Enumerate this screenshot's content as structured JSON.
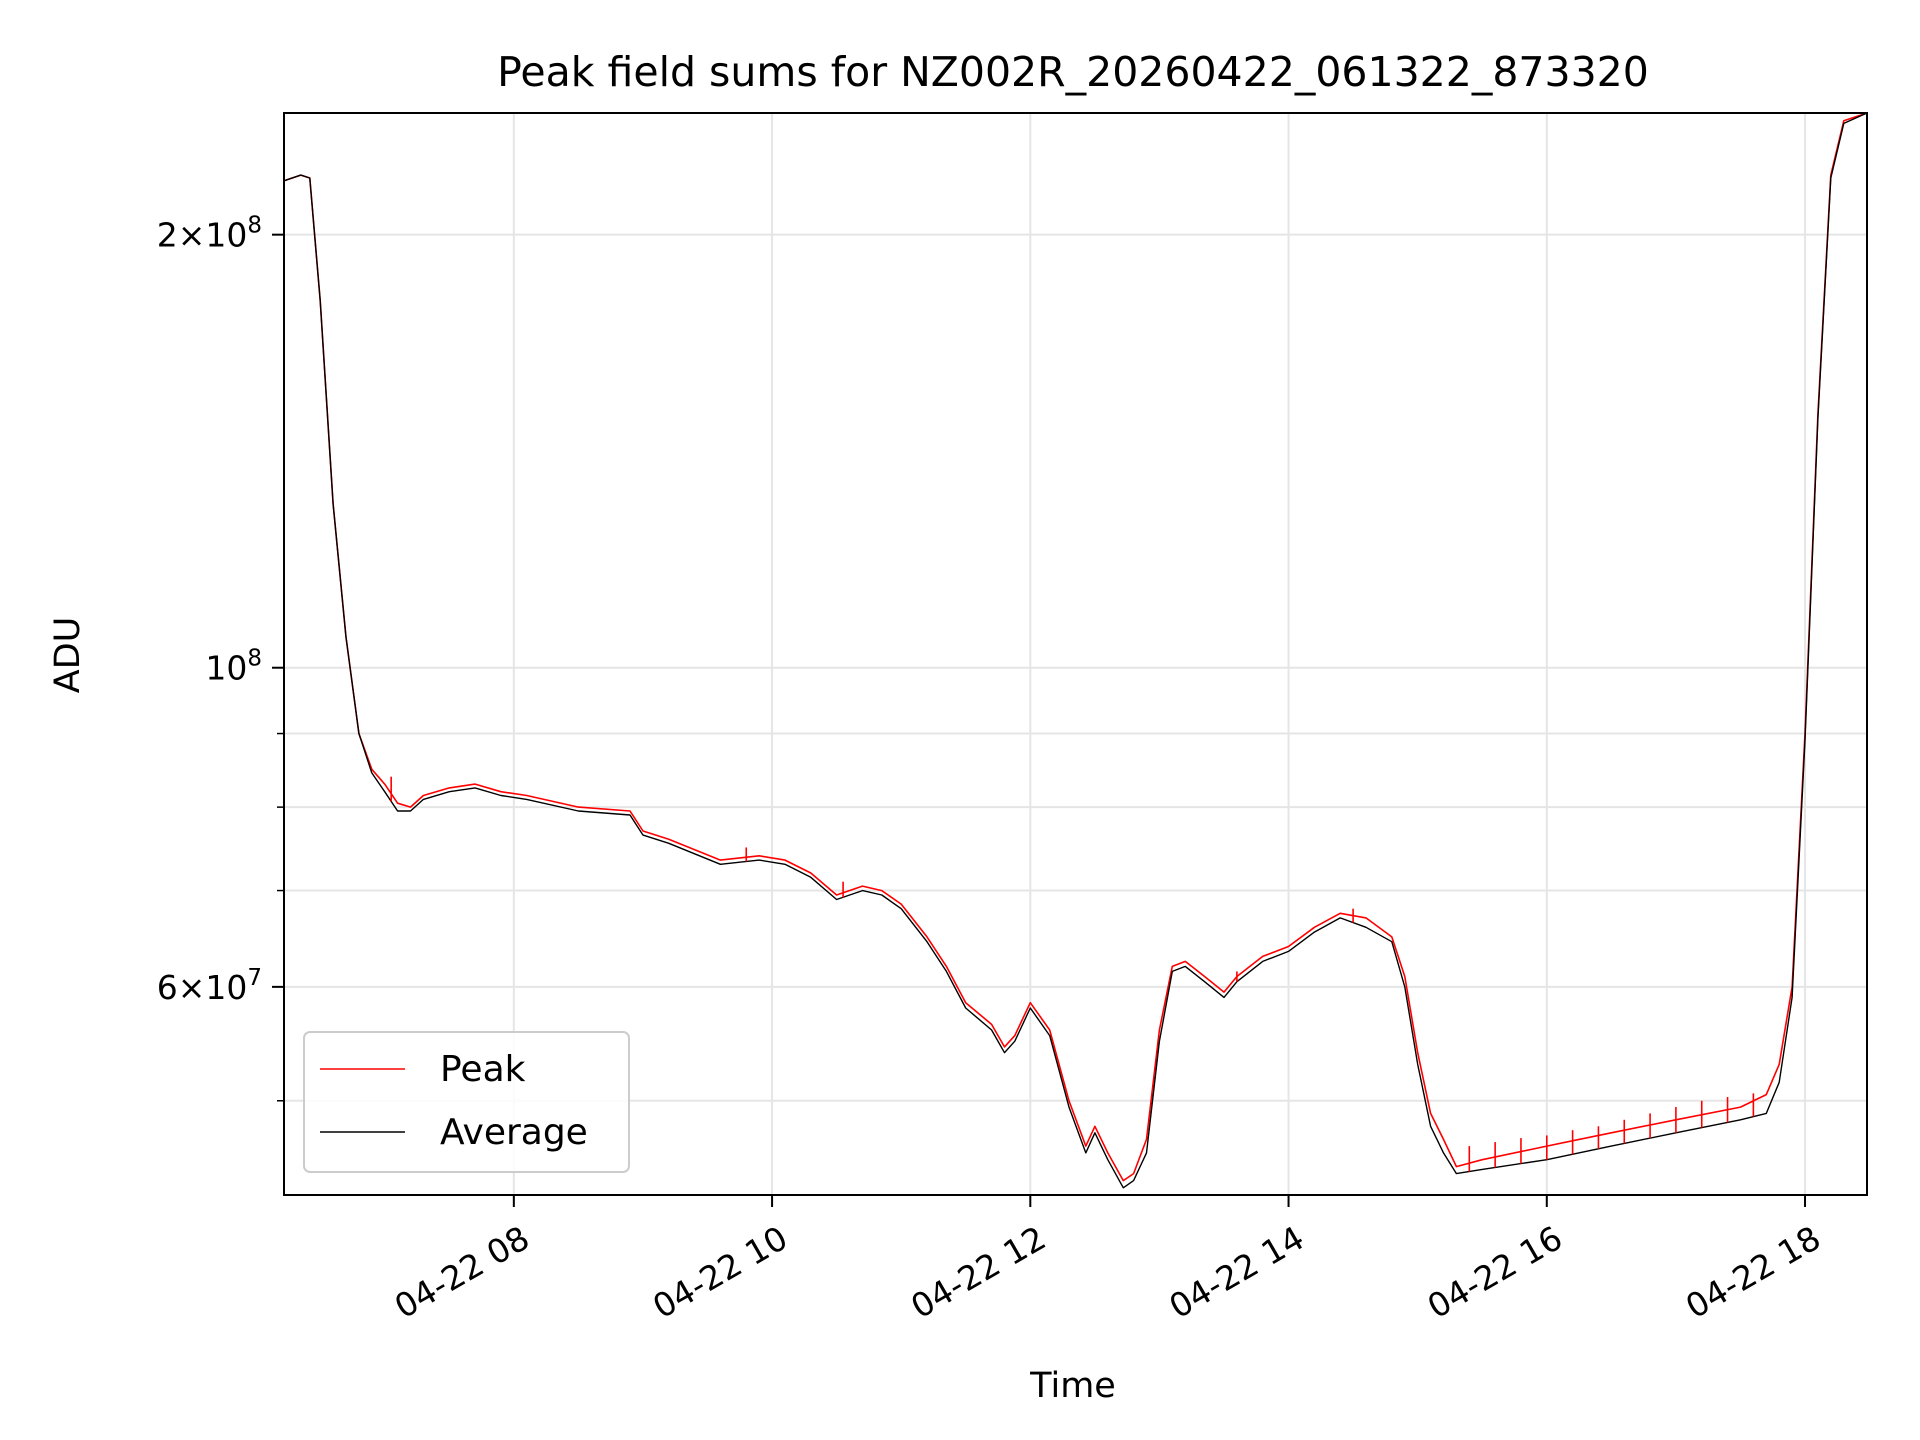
{
  "chart_data": {
    "type": "line",
    "title": "Peak field sums for NZ002R_20260422_061322_873320",
    "xlabel": "Time",
    "ylabel": "ADU",
    "y_scale": "log",
    "ylim": [
      43000000,
      243000000
    ],
    "xlim_hours": [
      6.22,
      18.48
    ],
    "x_ticks": [
      {
        "hour": 8,
        "label": "04-22 08"
      },
      {
        "hour": 10,
        "label": "04-22 10"
      },
      {
        "hour": 12,
        "label": "04-22 12"
      },
      {
        "hour": 14,
        "label": "04-22 14"
      },
      {
        "hour": 16,
        "label": "04-22 16"
      },
      {
        "hour": 18,
        "label": "04-22 18"
      }
    ],
    "y_ticks": [
      {
        "value": 200000000,
        "mantissa": "2",
        "exponent": "8"
      },
      {
        "value": 100000000,
        "mantissa": "",
        "exponent": "8"
      },
      {
        "value": 60000000,
        "mantissa": "6",
        "exponent": "7"
      }
    ],
    "y_minor_grid": [
      50000000,
      70000000,
      80000000,
      90000000
    ],
    "grid": true,
    "legend_position": "lower-left",
    "series": [
      {
        "name": "Peak",
        "color": "#ff0000",
        "x_hours": [
          6.22,
          6.35,
          6.42,
          6.5,
          6.6,
          6.7,
          6.8,
          6.9,
          7.0,
          7.1,
          7.2,
          7.3,
          7.5,
          7.7,
          7.9,
          8.1,
          8.5,
          8.9,
          9.0,
          9.2,
          9.6,
          9.9,
          10.1,
          10.3,
          10.5,
          10.7,
          10.85,
          11.0,
          11.2,
          11.35,
          11.5,
          11.7,
          11.8,
          11.88,
          12.0,
          12.15,
          12.3,
          12.43,
          12.5,
          12.6,
          12.72,
          12.8,
          12.9,
          13.0,
          13.1,
          13.2,
          13.35,
          13.5,
          13.6,
          13.8,
          14.0,
          14.2,
          14.4,
          14.6,
          14.8,
          14.9,
          15.0,
          15.1,
          15.2,
          15.3,
          15.5,
          16.0,
          16.5,
          17.0,
          17.5,
          17.7,
          17.8,
          17.9,
          18.0,
          18.1,
          18.2,
          18.3,
          18.48
        ],
        "values": [
          218000000,
          220000000,
          219000000,
          180000000,
          130000000,
          105000000,
          90000000,
          85000000,
          83000000,
          80500000,
          80000000,
          81500000,
          82500000,
          83000000,
          82000000,
          81500000,
          80000000,
          79500000,
          77000000,
          76000000,
          73500000,
          74000000,
          73500000,
          72000000,
          69500000,
          70500000,
          70000000,
          68500000,
          65000000,
          62000000,
          58500000,
          56500000,
          54500000,
          55500000,
          58500000,
          56000000,
          50000000,
          46500000,
          48000000,
          46000000,
          44000000,
          44500000,
          47000000,
          56000000,
          62000000,
          62500000,
          61000000,
          59500000,
          61000000,
          63000000,
          64000000,
          66000000,
          67500000,
          67000000,
          65000000,
          61000000,
          54000000,
          49000000,
          47000000,
          45000000,
          45500000,
          46500000,
          47500000,
          48500000,
          49500000,
          50500000,
          53000000,
          60000000,
          90000000,
          150000000,
          220000000,
          240000000,
          243000000
        ],
        "spikes": [
          {
            "hour": 15.4,
            "peak": 46500000
          },
          {
            "hour": 15.6,
            "peak": 46800000
          },
          {
            "hour": 15.8,
            "peak": 47100000
          },
          {
            "hour": 16.0,
            "peak": 47300000
          },
          {
            "hour": 16.2,
            "peak": 47700000
          },
          {
            "hour": 16.4,
            "peak": 48000000
          },
          {
            "hour": 16.6,
            "peak": 48500000
          },
          {
            "hour": 16.8,
            "peak": 49000000
          },
          {
            "hour": 17.0,
            "peak": 49500000
          },
          {
            "hour": 17.2,
            "peak": 50000000
          },
          {
            "hour": 17.4,
            "peak": 50300000
          },
          {
            "hour": 17.6,
            "peak": 50600000
          },
          {
            "hour": 13.6,
            "peak": 61500000
          },
          {
            "hour": 14.5,
            "peak": 68000000
          },
          {
            "hour": 9.8,
            "peak": 75000000
          },
          {
            "hour": 10.55,
            "peak": 71000000
          },
          {
            "hour": 7.05,
            "peak": 84000000
          }
        ]
      },
      {
        "name": "Average",
        "color": "#000000",
        "x_hours": [
          6.22,
          6.35,
          6.42,
          6.5,
          6.6,
          6.7,
          6.8,
          6.9,
          7.0,
          7.1,
          7.2,
          7.3,
          7.5,
          7.7,
          7.9,
          8.1,
          8.5,
          8.9,
          9.0,
          9.2,
          9.6,
          9.9,
          10.1,
          10.3,
          10.5,
          10.7,
          10.85,
          11.0,
          11.2,
          11.35,
          11.5,
          11.7,
          11.8,
          11.88,
          12.0,
          12.15,
          12.3,
          12.43,
          12.5,
          12.6,
          12.72,
          12.8,
          12.9,
          13.0,
          13.1,
          13.2,
          13.35,
          13.5,
          13.6,
          13.8,
          14.0,
          14.2,
          14.4,
          14.6,
          14.8,
          14.9,
          15.0,
          15.1,
          15.2,
          15.3,
          15.5,
          16.0,
          16.5,
          17.0,
          17.5,
          17.7,
          17.8,
          17.9,
          18.0,
          18.1,
          18.2,
          18.3,
          18.48
        ],
        "values": [
          218000000,
          220000000,
          219000000,
          180000000,
          130000000,
          105000000,
          90000000,
          84500000,
          82000000,
          79500000,
          79500000,
          81000000,
          82000000,
          82500000,
          81500000,
          81000000,
          79500000,
          79000000,
          76500000,
          75500000,
          73000000,
          73500000,
          73000000,
          71500000,
          69000000,
          70000000,
          69500000,
          68000000,
          64500000,
          61500000,
          58000000,
          56000000,
          54000000,
          55000000,
          58000000,
          55500000,
          49500000,
          46000000,
          47500000,
          45500000,
          43500000,
          44000000,
          46000000,
          55000000,
          61500000,
          62000000,
          60500000,
          59000000,
          60500000,
          62500000,
          63500000,
          65500000,
          67000000,
          66000000,
          64500000,
          60000000,
          53000000,
          48000000,
          46000000,
          44500000,
          44800000,
          45500000,
          46500000,
          47500000,
          48500000,
          49000000,
          51500000,
          59000000,
          89000000,
          149000000,
          219000000,
          239000000,
          243000000
        ]
      }
    ]
  }
}
